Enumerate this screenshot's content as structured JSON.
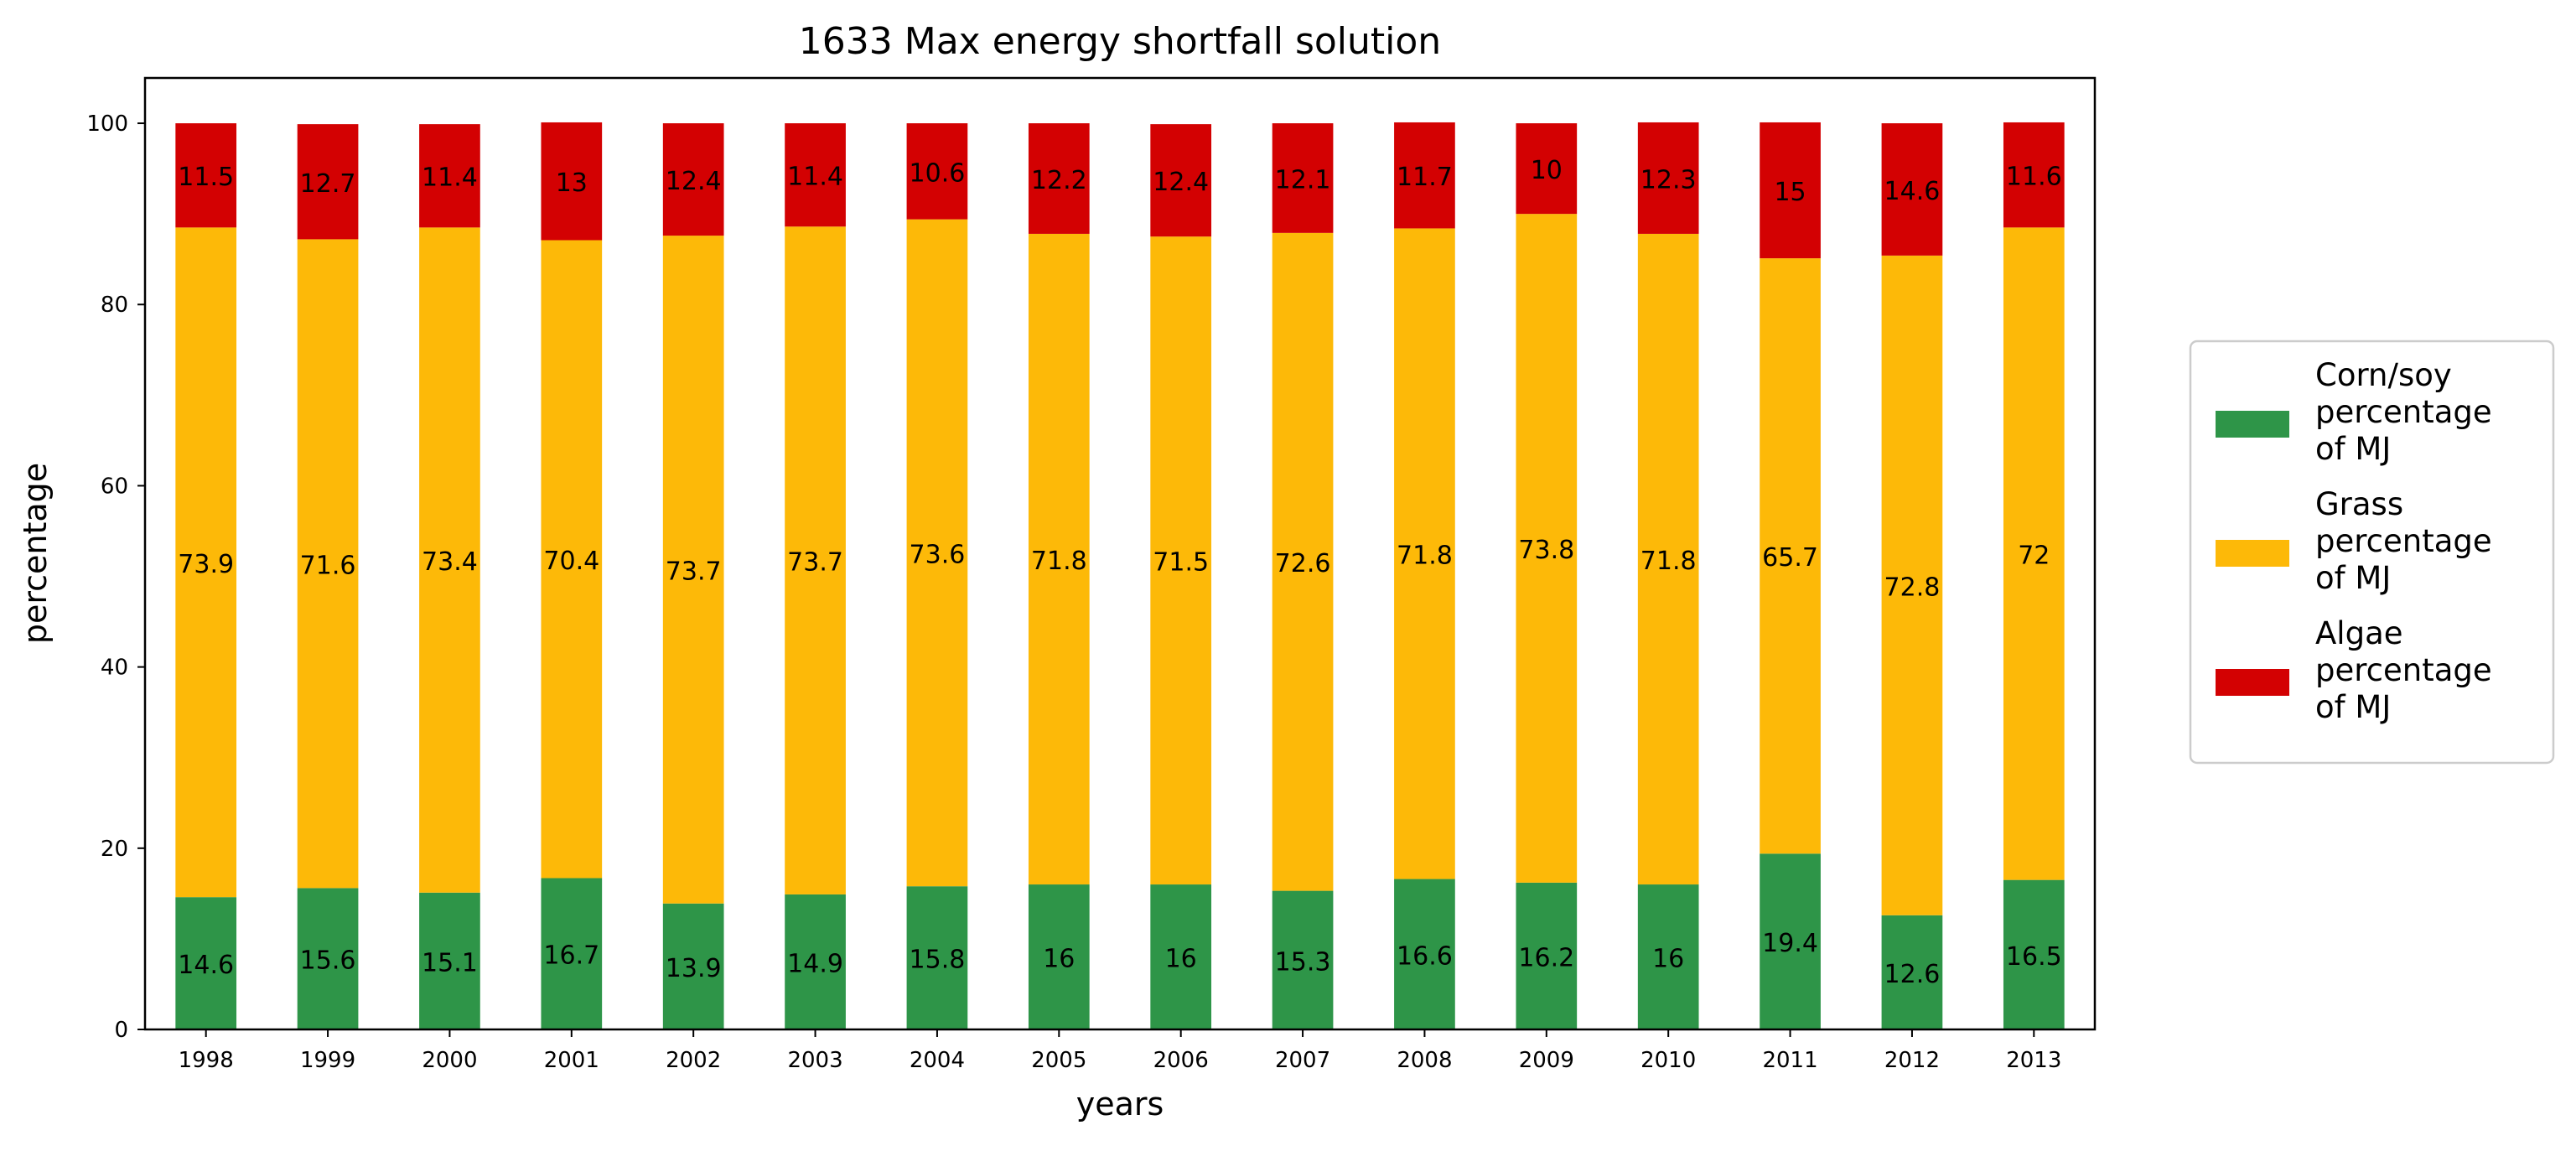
{
  "chart_data": {
    "type": "bar",
    "stacked": true,
    "title": "1633 Max energy shortfall solution",
    "xlabel": "years",
    "ylabel": "percentage",
    "ylim": [
      0,
      105
    ],
    "yticks": [
      "0",
      "20",
      "40",
      "60",
      "80",
      "100"
    ],
    "grid": false,
    "legend_position": "right",
    "categories": [
      "1998",
      "1999",
      "2000",
      "2001",
      "2002",
      "2003",
      "2004",
      "2005",
      "2006",
      "2007",
      "2008",
      "2009",
      "2010",
      "2011",
      "2012",
      "2013"
    ],
    "series": [
      {
        "name": "Corn/soy percentage of MJ",
        "legend_lines": [
          "Corn/soy",
          "percentage",
          "of MJ"
        ],
        "color": "#2e9548",
        "values": [
          14.6,
          15.6,
          15.1,
          16.7,
          13.9,
          14.9,
          15.8,
          16,
          16,
          15.3,
          16.6,
          16.2,
          16,
          19.4,
          12.6,
          16.5
        ],
        "labels": [
          "14.6",
          "15.6",
          "15.1",
          "16.7",
          "13.9",
          "14.9",
          "15.8",
          "16",
          "16",
          "15.3",
          "16.6",
          "16.2",
          "16",
          "19.4",
          "12.6",
          "16.5"
        ]
      },
      {
        "name": "Grass percentage of MJ",
        "legend_lines": [
          "Grass",
          "percentage",
          "of MJ"
        ],
        "color": "#fdb908",
        "values": [
          73.9,
          71.6,
          73.4,
          70.4,
          73.7,
          73.7,
          73.6,
          71.8,
          71.5,
          72.6,
          71.8,
          73.8,
          71.8,
          65.7,
          72.8,
          72
        ],
        "labels": [
          "73.9",
          "71.6",
          "73.4",
          "70.4",
          "73.7",
          "73.7",
          "73.6",
          "71.8",
          "71.5",
          "72.6",
          "71.8",
          "73.8",
          "71.8",
          "65.7",
          "72.8",
          "72"
        ]
      },
      {
        "name": "Algae percentage of MJ",
        "legend_lines": [
          "Algae",
          "percentage",
          "of MJ"
        ],
        "color": "#d30102",
        "values": [
          11.5,
          12.7,
          11.4,
          13,
          12.4,
          11.4,
          10.6,
          12.2,
          12.4,
          12.1,
          11.7,
          10,
          12.3,
          15,
          14.6,
          11.6
        ],
        "labels": [
          "11.5",
          "12.7",
          "11.4",
          "13",
          "12.4",
          "11.4",
          "10.6",
          "12.2",
          "12.4",
          "12.1",
          "11.7",
          "10",
          "12.3",
          "15",
          "14.6",
          "11.6"
        ]
      }
    ]
  }
}
